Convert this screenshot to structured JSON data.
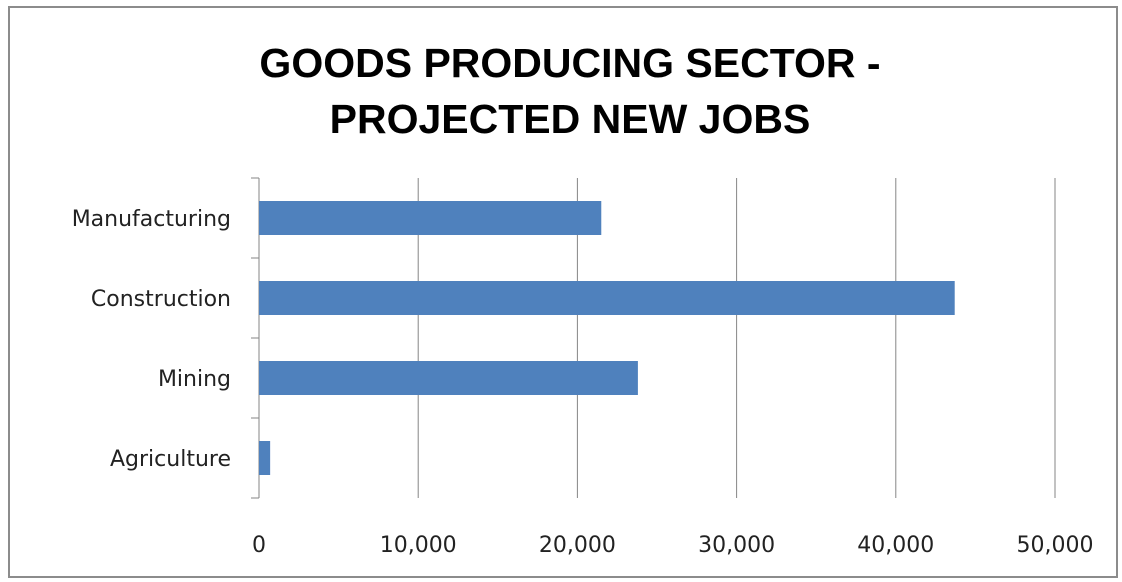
{
  "chart_data": {
    "type": "bar",
    "orientation": "horizontal",
    "title": "GOODS PRODUCING SECTOR - PROJECTED NEW JOBS",
    "title_lines": [
      "GOODS PRODUCING SECTOR -",
      "PROJECTED NEW JOBS"
    ],
    "categories": [
      "Manufacturing",
      "Construction",
      "Mining",
      "Agriculture"
    ],
    "values": [
      21500,
      43700,
      23800,
      700
    ],
    "xlim": [
      0,
      50000
    ],
    "x_ticks": [
      0,
      10000,
      20000,
      30000,
      40000,
      50000
    ],
    "x_tick_labels": [
      "0",
      "10,000",
      "20,000",
      "30,000",
      "40,000",
      "50,000"
    ],
    "xlabel": "",
    "ylabel": "",
    "grid": "vertical",
    "legend": "none",
    "bar_color": "#4f81bd",
    "grid_color": "#868686"
  }
}
